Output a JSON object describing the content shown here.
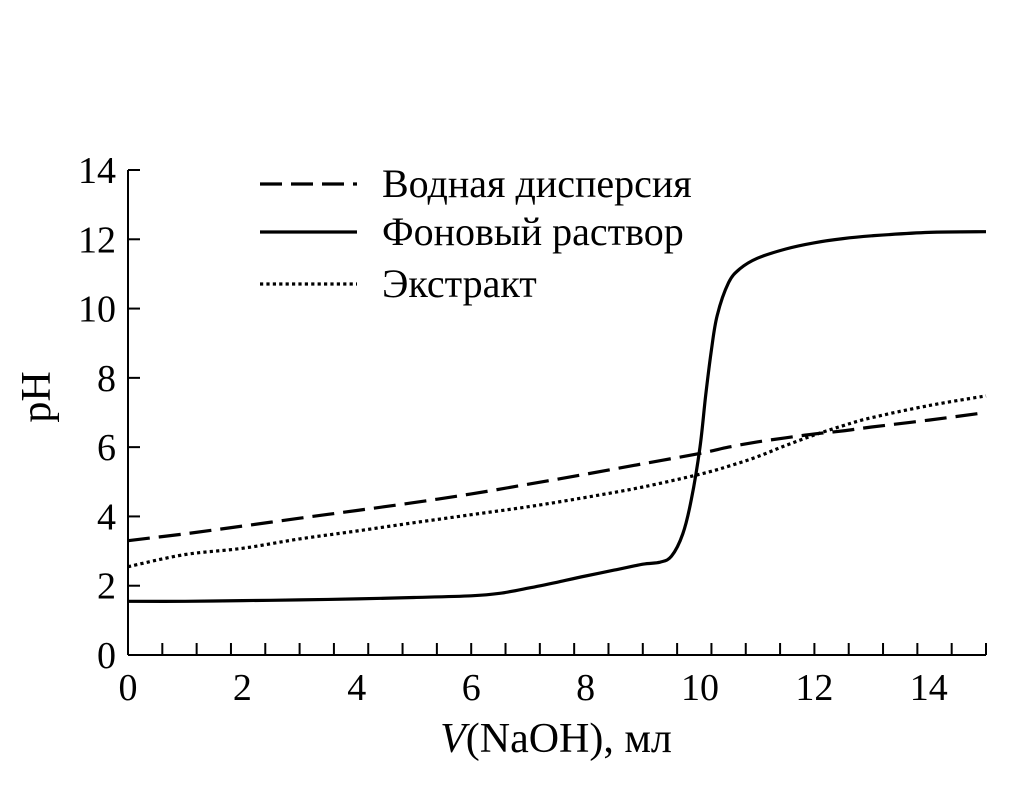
{
  "chart_data": {
    "type": "line",
    "title": "",
    "xlabel_italic": "V",
    "xlabel_rest": "(NaOH), мл",
    "ylabel": "pH",
    "xlim": [
      0,
      15
    ],
    "ylim": [
      0,
      14
    ],
    "x_ticks": [
      0,
      2,
      4,
      6,
      8,
      10,
      12,
      14
    ],
    "y_ticks": [
      0,
      2,
      4,
      6,
      8,
      10,
      12,
      14
    ],
    "x_minor_step": 0.6,
    "grid": false,
    "legend_position": "top-left",
    "series": [
      {
        "name": "Водная дисперсия",
        "style": "dashed",
        "x": [
          0,
          1,
          2,
          3,
          4,
          5,
          6,
          7,
          8,
          9,
          10,
          10.5,
          11,
          11.5,
          12,
          12.5,
          13,
          14,
          15
        ],
        "y": [
          3.3,
          3.5,
          3.72,
          3.95,
          4.17,
          4.4,
          4.65,
          4.93,
          5.22,
          5.52,
          5.82,
          6.0,
          6.15,
          6.27,
          6.38,
          6.47,
          6.58,
          6.78,
          7.0
        ]
      },
      {
        "name": "Фоновый раствор",
        "style": "solid",
        "x": [
          0,
          1,
          2,
          3,
          4,
          5,
          6,
          6.5,
          7,
          7.5,
          8,
          8.5,
          9,
          9.3,
          9.5,
          9.7,
          9.85,
          10.0,
          10.1,
          10.2,
          10.3,
          10.5,
          10.7,
          11,
          11.5,
          12,
          12.5,
          13,
          14,
          15
        ],
        "y": [
          1.55,
          1.55,
          1.57,
          1.59,
          1.62,
          1.66,
          1.71,
          1.78,
          1.93,
          2.1,
          2.28,
          2.45,
          2.62,
          2.68,
          2.85,
          3.5,
          4.5,
          6.0,
          7.5,
          8.8,
          9.8,
          10.75,
          11.15,
          11.45,
          11.72,
          11.9,
          12.02,
          12.1,
          12.2,
          12.22
        ]
      },
      {
        "name": "Экстракт",
        "style": "dotted",
        "x": [
          0,
          1,
          2,
          3,
          4,
          5,
          6,
          7,
          8,
          9,
          10,
          10.5,
          11,
          11.5,
          12,
          12.5,
          13,
          14,
          15
        ],
        "y": [
          2.55,
          2.9,
          3.08,
          3.35,
          3.58,
          3.82,
          4.05,
          4.28,
          4.55,
          4.85,
          5.22,
          5.45,
          5.72,
          6.05,
          6.35,
          6.62,
          6.85,
          7.2,
          7.48
        ]
      }
    ]
  }
}
